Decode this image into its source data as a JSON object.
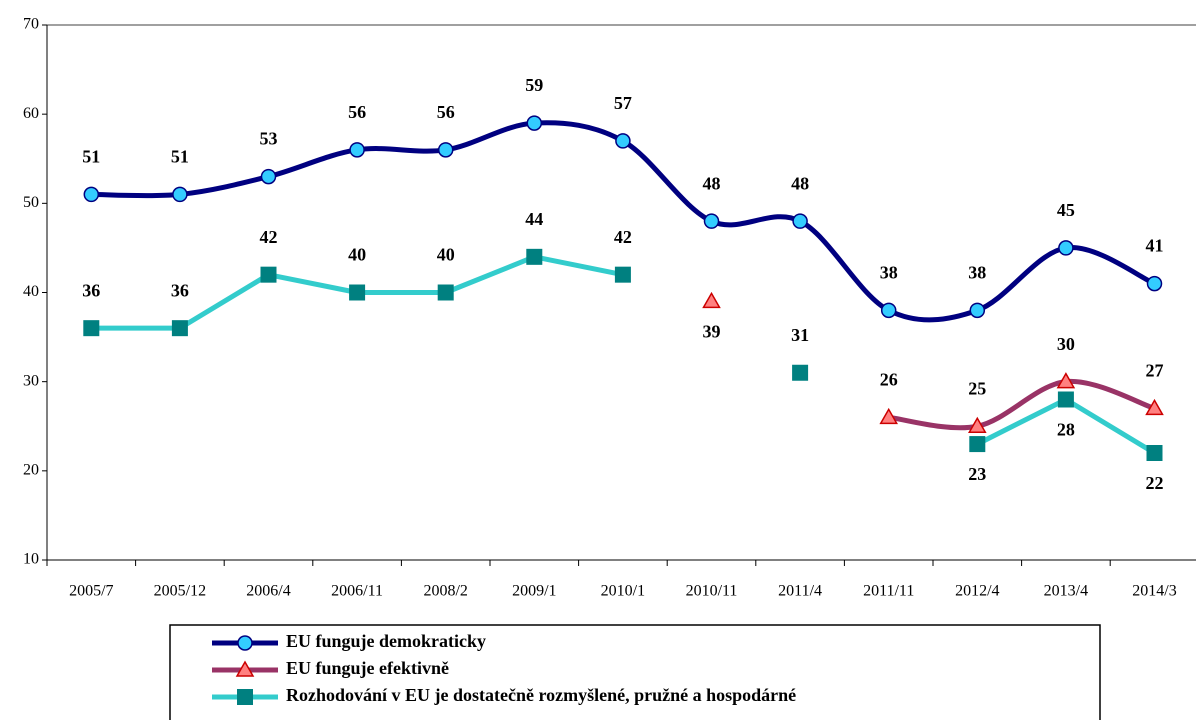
{
  "chart_data": {
    "type": "line",
    "categories": [
      "2005/7",
      "2005/12",
      "2006/4",
      "2006/11",
      "2008/2",
      "2009/1",
      "2010/1",
      "2010/11",
      "2011/4",
      "2011/11",
      "2012/4",
      "2013/4",
      "2014/3"
    ],
    "series": [
      {
        "name": "EU funguje demokraticky",
        "color": "#000080",
        "marker": "circle",
        "marker_color": "#33ccff",
        "smooth": true,
        "values": [
          51,
          51,
          53,
          56,
          56,
          59,
          57,
          48,
          48,
          38,
          38,
          45,
          41
        ]
      },
      {
        "name": "EU funguje efektivně",
        "color": "#993366",
        "marker": "triangle",
        "marker_color": "#ff8080",
        "smooth": true,
        "values": [
          null,
          null,
          null,
          null,
          null,
          null,
          null,
          39,
          null,
          26,
          25,
          30,
          27
        ]
      },
      {
        "name": "Rozhodování v EU je dostatečně rozmyšlené, pružné a hospodárné",
        "color": "#33cccc",
        "marker": "square",
        "marker_color": "#008080",
        "smooth": false,
        "values": [
          36,
          36,
          42,
          40,
          40,
          44,
          42,
          null,
          31,
          null,
          23,
          28,
          22
        ]
      }
    ],
    "ylim": [
      10,
      70
    ],
    "yticks": [
      10,
      20,
      30,
      40,
      50,
      60,
      70
    ],
    "legend": "bottom"
  }
}
